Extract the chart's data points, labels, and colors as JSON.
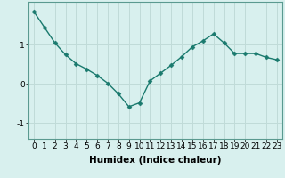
{
  "x": [
    0,
    1,
    2,
    3,
    4,
    5,
    6,
    7,
    8,
    9,
    10,
    11,
    12,
    13,
    14,
    15,
    16,
    17,
    18,
    19,
    20,
    21,
    22,
    23
  ],
  "y": [
    1.85,
    1.45,
    1.05,
    0.75,
    0.52,
    0.38,
    0.22,
    0.02,
    -0.25,
    -0.58,
    -0.48,
    0.08,
    0.28,
    0.48,
    0.7,
    0.95,
    1.1,
    1.28,
    1.05,
    0.78,
    0.78,
    0.78,
    0.68,
    0.62
  ],
  "line_color": "#1a7a6e",
  "marker": "D",
  "marker_size": 2.5,
  "line_width": 1.0,
  "bg_color": "#d8f0ee",
  "grid_color": "#c0dbd8",
  "xlabel": "Humidex (Indice chaleur)",
  "yticks": [
    -1,
    0,
    1
  ],
  "ylim": [
    -1.4,
    2.1
  ],
  "xlim": [
    -0.5,
    23.5
  ],
  "xlabel_fontsize": 7.5,
  "tick_fontsize": 6.5
}
